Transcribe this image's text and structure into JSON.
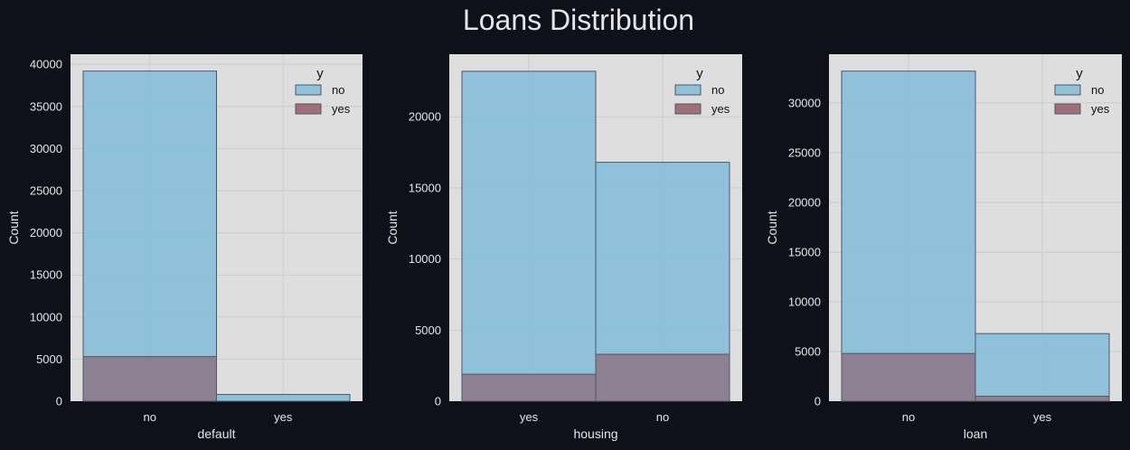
{
  "figure": {
    "title": "Loans Distribution"
  },
  "colors": {
    "background": "#0e111a",
    "plot_bg": "#dedede",
    "grid": "#cbcbcb",
    "no": "#7ebcd9",
    "yes": "#8b4a57",
    "edge": "#4d5866"
  },
  "chart_data": [
    {
      "type": "bar",
      "xlabel": "default",
      "ylabel": "Count",
      "categories": [
        "no",
        "yes"
      ],
      "ylim": [
        0,
        41200
      ],
      "yticks": [
        0,
        5000,
        10000,
        15000,
        20000,
        25000,
        30000,
        35000,
        40000
      ],
      "series": [
        {
          "name": "no",
          "values": [
            39200,
            800
          ]
        },
        {
          "name": "yes",
          "values": [
            5300,
            0
          ]
        }
      ],
      "legend": {
        "title": "y",
        "position": "top-right"
      }
    },
    {
      "type": "bar",
      "xlabel": "housing",
      "ylabel": "Count",
      "categories": [
        "yes",
        "no"
      ],
      "ylim": [
        0,
        24400
      ],
      "yticks": [
        0,
        5000,
        10000,
        15000,
        20000
      ],
      "series": [
        {
          "name": "no",
          "values": [
            23200,
            16800
          ]
        },
        {
          "name": "yes",
          "values": [
            1900,
            3300
          ]
        }
      ],
      "legend": {
        "title": "y",
        "position": "top-right"
      }
    },
    {
      "type": "bar",
      "xlabel": "loan",
      "ylabel": "Count",
      "categories": [
        "no",
        "yes"
      ],
      "ylim": [
        0,
        34900
      ],
      "yticks": [
        0,
        5000,
        10000,
        15000,
        20000,
        25000,
        30000
      ],
      "series": [
        {
          "name": "no",
          "values": [
            33200,
            6800
          ]
        },
        {
          "name": "yes",
          "values": [
            4800,
            500
          ]
        }
      ],
      "legend": {
        "title": "y",
        "position": "top-right"
      }
    }
  ]
}
